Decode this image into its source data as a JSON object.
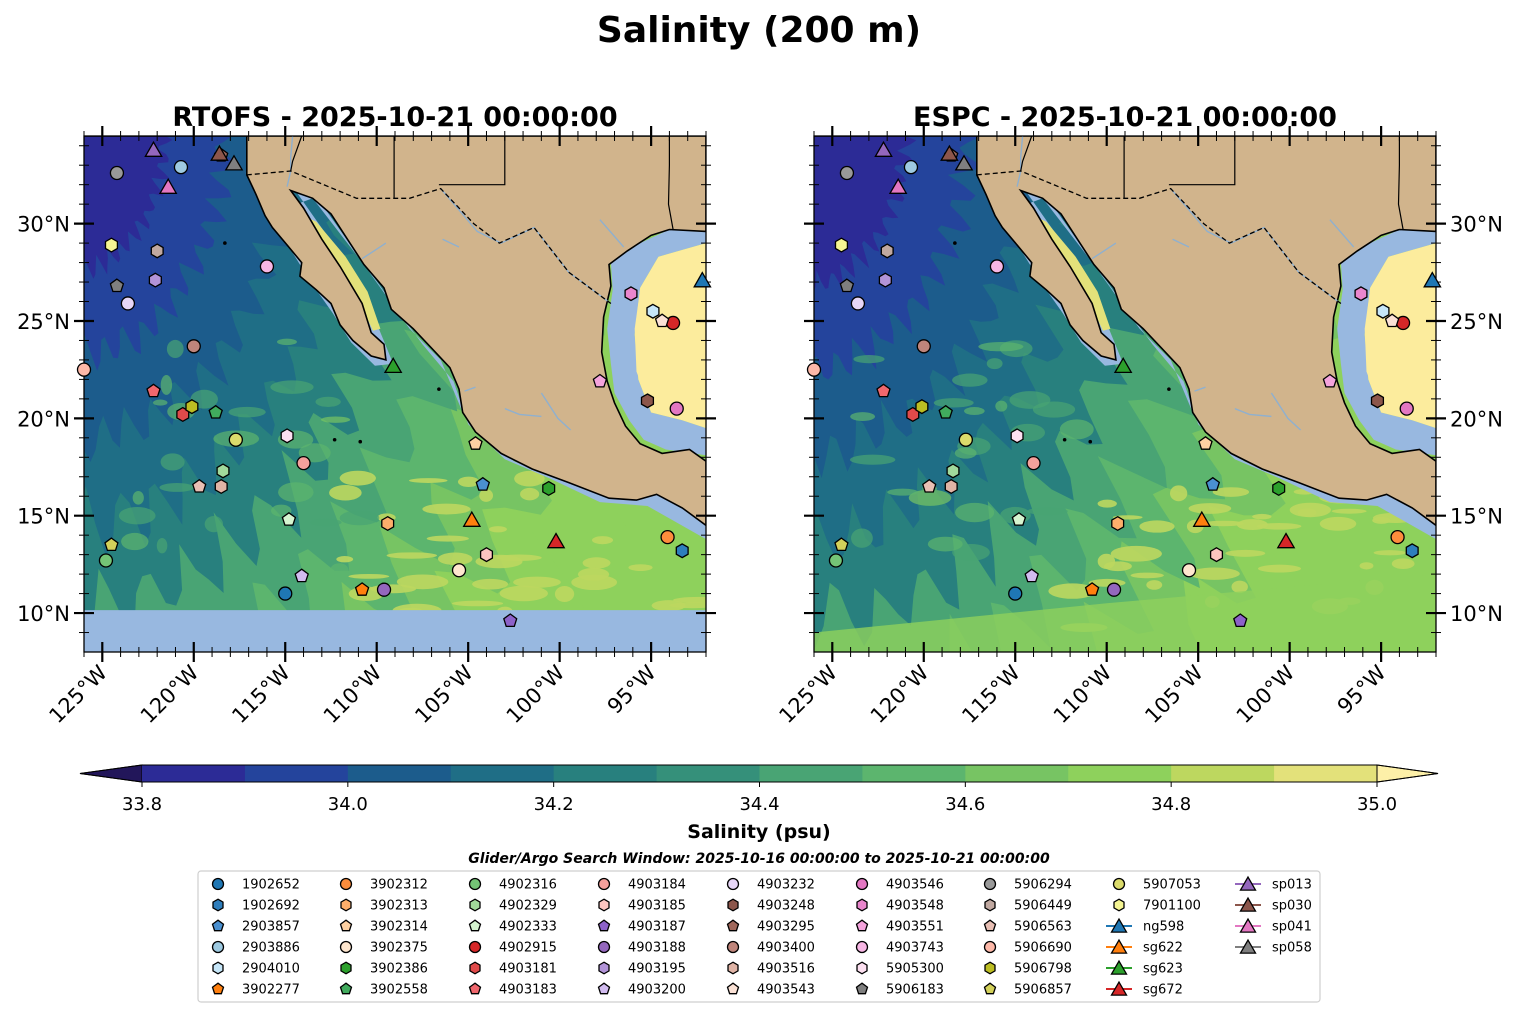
{
  "figure_title": "Salinity (200 m)",
  "colors": {
    "land": "#d1b48c",
    "shelf": "#98b8e0",
    "cmap": [
      "#2b1a7a",
      "#2c2b96",
      "#24449c",
      "#1c5c8c",
      "#1f6e86",
      "#28807e",
      "#35907a",
      "#49a474",
      "#5cb56e",
      "#77c463",
      "#8ed15c",
      "#bdd75f",
      "#e3e17a",
      "#fcec9d"
    ],
    "extend_low": "#22165a",
    "extend_high": "#fdf0a8"
  },
  "panels": [
    {
      "title": "RTOFS - 2025-10-21 00:00:00",
      "variant": "rtofs"
    },
    {
      "title": "ESPC - 2025-10-21 00:00:00",
      "variant": "espc"
    }
  ],
  "lat_ticks": [
    "10°N",
    "15°N",
    "20°N",
    "25°N",
    "30°N"
  ],
  "lon_ticks": [
    "125°W",
    "120°W",
    "115°W",
    "110°W",
    "105°W",
    "100°W",
    "95°W"
  ],
  "colorbar": {
    "label": "Salinity (psu)",
    "ticks": [
      "33.8",
      "34.0",
      "34.2",
      "34.4",
      "34.6",
      "34.8",
      "35.0"
    ]
  },
  "search_window": "Glider/Argo Search Window: 2025-10-16 00:00:00 to 2025-10-21 00:00:00",
  "chart_data": {
    "type": "map",
    "title": "Salinity (200 m)",
    "variable": "Salinity (psu)",
    "vmin": 33.8,
    "vmax": 35.0,
    "levels_step": 0.1,
    "extend": "both",
    "lon_range": [
      -126,
      -92
    ],
    "lat_range": [
      8,
      34.5
    ],
    "panels": [
      "RTOFS - 2025-10-21 00:00:00",
      "ESPC - 2025-10-21 00:00:00"
    ],
    "features": [
      {
        "id": "1902652",
        "marker": "circle",
        "color": "#1f77b4",
        "lon": -115.0,
        "lat": 11.0
      },
      {
        "id": "1902692",
        "marker": "hexagon",
        "color": "#2e7ebc",
        "lon": -93.3,
        "lat": 13.2
      },
      {
        "id": "2903857",
        "marker": "pentagon",
        "color": "#4a90d0",
        "lon": -104.2,
        "lat": 16.6
      },
      {
        "id": "2903886",
        "marker": "circle",
        "color": "#9ecae1",
        "lon": -120.7,
        "lat": 32.9
      },
      {
        "id": "2904010",
        "marker": "hexagon",
        "color": "#c6e6f8",
        "lon": -94.9,
        "lat": 25.5
      },
      {
        "id": "3902277",
        "marker": "pentagon",
        "color": "#ff7f0e",
        "lon": -110.8,
        "lat": 11.2
      },
      {
        "id": "3902312",
        "marker": "circle",
        "color": "#fd8d3c",
        "lon": -94.1,
        "lat": 13.9
      },
      {
        "id": "3902313",
        "marker": "hexagon",
        "color": "#fdae6b",
        "lon": -109.4,
        "lat": 14.6
      },
      {
        "id": "3902314",
        "marker": "pentagon",
        "color": "#fdd0a2",
        "lon": -104.6,
        "lat": 18.7
      },
      {
        "id": "3902375",
        "marker": "circle",
        "color": "#fee6ce",
        "lon": -105.5,
        "lat": 12.2
      },
      {
        "id": "3902386",
        "marker": "hexagon",
        "color": "#2ca02c",
        "lon": -100.6,
        "lat": 16.4
      },
      {
        "id": "3902558",
        "marker": "pentagon",
        "color": "#41ab5d",
        "lon": -118.8,
        "lat": 20.3
      },
      {
        "id": "4902316",
        "marker": "circle",
        "color": "#74c476",
        "lon": -124.8,
        "lat": 12.7
      },
      {
        "id": "4902329",
        "marker": "hexagon",
        "color": "#a1d99b",
        "lon": -118.4,
        "lat": 17.3
      },
      {
        "id": "4902333",
        "marker": "pentagon",
        "color": "#d6f5d0",
        "lon": -114.8,
        "lat": 14.8
      },
      {
        "id": "4902915",
        "marker": "circle",
        "color": "#d62728",
        "lon": -93.8,
        "lat": 24.9
      },
      {
        "id": "4903181",
        "marker": "hexagon",
        "color": "#e04a4a",
        "lon": -120.6,
        "lat": 20.2
      },
      {
        "id": "4903183",
        "marker": "pentagon",
        "color": "#f0676d",
        "lon": -122.2,
        "lat": 21.4
      },
      {
        "id": "4903184",
        "marker": "circle",
        "color": "#f4a09c",
        "lon": -114.0,
        "lat": 17.7
      },
      {
        "id": "4903185",
        "marker": "hexagon",
        "color": "#fcc5c0",
        "lon": -104.0,
        "lat": 13.0
      },
      {
        "id": "4903187",
        "marker": "pentagon",
        "color": "#8d62c9",
        "lon": -102.7,
        "lat": 9.6
      },
      {
        "id": "4903188",
        "marker": "circle",
        "color": "#9467bd",
        "lon": -109.6,
        "lat": 11.2
      },
      {
        "id": "4903195",
        "marker": "hexagon",
        "color": "#b294d8",
        "lon": -122.1,
        "lat": 27.1
      },
      {
        "id": "4903200",
        "marker": "pentagon",
        "color": "#d2bcf0",
        "lon": -114.1,
        "lat": 11.9
      },
      {
        "id": "4903232",
        "marker": "circle",
        "color": "#e7d6f7",
        "lon": -123.6,
        "lat": 25.9
      },
      {
        "id": "4903248",
        "marker": "hexagon",
        "color": "#8c564b",
        "lon": -95.2,
        "lat": 20.9
      },
      {
        "id": "4903295",
        "marker": "pentagon",
        "color": "#a0685c",
        "lon": -118.5,
        "lat": 33.5
      },
      {
        "id": "4903400",
        "marker": "circle",
        "color": "#bf857b",
        "lon": -120.0,
        "lat": 23.7
      },
      {
        "id": "4903516",
        "marker": "hexagon",
        "color": "#e0b4a6",
        "lon": -118.5,
        "lat": 16.5
      },
      {
        "id": "4903543",
        "marker": "pentagon",
        "color": "#fbe2d6",
        "lon": -94.4,
        "lat": 25.0
      },
      {
        "id": "4903546",
        "marker": "circle",
        "color": "#e377c2",
        "lon": -93.6,
        "lat": 20.5
      },
      {
        "id": "4903548",
        "marker": "hexagon",
        "color": "#ea86cd",
        "lon": -96.1,
        "lat": 26.4
      },
      {
        "id": "4903551",
        "marker": "pentagon",
        "color": "#f4a3dc",
        "lon": -97.8,
        "lat": 21.9
      },
      {
        "id": "4903743",
        "marker": "circle",
        "color": "#f7b6e4",
        "lon": -116.0,
        "lat": 27.8
      },
      {
        "id": "5905300",
        "marker": "hexagon",
        "color": "#fde0f1",
        "lon": -114.9,
        "lat": 19.1
      },
      {
        "id": "5906183",
        "marker": "pentagon",
        "color": "#7f7f7f",
        "lon": -124.2,
        "lat": 26.8
      },
      {
        "id": "5906294",
        "marker": "circle",
        "color": "#999999",
        "lon": -124.2,
        "lat": 32.6
      },
      {
        "id": "5906449",
        "marker": "hexagon",
        "color": "#c0a8a0",
        "lon": -122.0,
        "lat": 28.6
      },
      {
        "id": "5906563",
        "marker": "pentagon",
        "color": "#e8bfb4",
        "lon": -119.7,
        "lat": 16.5
      },
      {
        "id": "5906690",
        "marker": "circle",
        "color": "#fdb8a8",
        "lon": -126.0,
        "lat": 22.5
      },
      {
        "id": "5906798",
        "marker": "hexagon",
        "color": "#bcbd22",
        "lon": -120.1,
        "lat": 20.6
      },
      {
        "id": "5906857",
        "marker": "pentagon",
        "color": "#d3d15a",
        "lon": -124.5,
        "lat": 13.5
      },
      {
        "id": "5907053",
        "marker": "circle",
        "color": "#dbdb6b",
        "lon": -117.7,
        "lat": 18.9
      },
      {
        "id": "7901100",
        "marker": "hexagon",
        "color": "#f5f592",
        "lon": -124.5,
        "lat": 28.9
      },
      {
        "id": "ng598",
        "marker": "triangle",
        "color": "#1f77b4",
        "lon": -92.2,
        "lat": 27.1
      },
      {
        "id": "sg622",
        "marker": "triangle",
        "color": "#ff7f0e",
        "lon": -104.8,
        "lat": 14.8
      },
      {
        "id": "sg623",
        "marker": "triangle",
        "color": "#2ca02c",
        "lon": -109.1,
        "lat": 22.7
      },
      {
        "id": "sg672",
        "marker": "triangle",
        "color": "#d62728",
        "lon": -100.2,
        "lat": 13.7
      },
      {
        "id": "sp013",
        "marker": "triangle",
        "color": "#9467bd",
        "lon": -122.2,
        "lat": 33.8
      },
      {
        "id": "sp030",
        "marker": "triangle",
        "color": "#8c564b",
        "lon": -118.6,
        "lat": 33.6
      },
      {
        "id": "sp041",
        "marker": "triangle",
        "color": "#e377c2",
        "lon": -121.4,
        "lat": 31.9
      },
      {
        "id": "sp058",
        "marker": "triangle",
        "color": "#7f7f7f",
        "lon": -117.8,
        "lat": 33.1
      }
    ]
  }
}
